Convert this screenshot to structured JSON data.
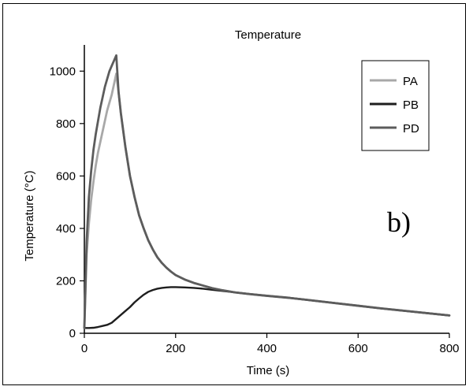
{
  "chart_data": {
    "type": "line",
    "title": "Temperature",
    "xlabel": "Time (s)",
    "ylabel": "Temperature (°C)",
    "xlim": [
      0,
      800
    ],
    "ylim": [
      0,
      1100
    ],
    "xticks": [
      0,
      200,
      400,
      600,
      800
    ],
    "yticks": [
      0,
      200,
      400,
      600,
      800,
      1000
    ],
    "grid": false,
    "legend_position": "top-right",
    "annotation": "b)",
    "series": [
      {
        "name": "PA",
        "color": "#a8a8a8",
        "x": [
          0,
          5,
          10,
          15,
          20,
          25,
          30,
          35,
          40,
          45,
          50,
          55,
          60,
          65,
          70,
          75,
          80,
          90,
          100,
          110,
          120,
          130,
          140,
          150,
          160,
          170,
          180,
          190,
          200,
          220,
          240,
          260,
          280,
          300,
          330,
          360,
          400,
          450,
          500,
          550,
          600,
          650,
          700,
          750,
          800
        ],
        "y": [
          20,
          300,
          420,
          510,
          580,
          640,
          690,
          730,
          770,
          810,
          850,
          880,
          910,
          950,
          990,
          920,
          840,
          710,
          600,
          520,
          450,
          400,
          355,
          320,
          290,
          268,
          250,
          235,
          222,
          205,
          192,
          182,
          172,
          165,
          156,
          150,
          143,
          135,
          125,
          115,
          105,
          95,
          86,
          77,
          68
        ]
      },
      {
        "name": "PB",
        "color": "#1e1e1e",
        "x": [
          0,
          10,
          20,
          30,
          40,
          50,
          60,
          70,
          80,
          90,
          100,
          110,
          120,
          130,
          140,
          150,
          160,
          170,
          180,
          190,
          200,
          220,
          240,
          260,
          280,
          300,
          330,
          360,
          400,
          450,
          500,
          550,
          600,
          650,
          700,
          750,
          800
        ],
        "y": [
          20,
          20,
          21,
          24,
          28,
          32,
          40,
          55,
          70,
          85,
          100,
          118,
          133,
          147,
          158,
          165,
          170,
          173,
          175,
          176,
          176,
          175,
          173,
          170,
          166,
          162,
          156,
          150,
          143,
          135,
          125,
          115,
          105,
          95,
          86,
          77,
          68
        ]
      },
      {
        "name": "PD",
        "color": "#5c5c5c",
        "x": [
          0,
          5,
          10,
          15,
          20,
          25,
          30,
          35,
          40,
          45,
          50,
          55,
          60,
          65,
          70,
          75,
          80,
          90,
          100,
          110,
          120,
          130,
          140,
          150,
          160,
          170,
          180,
          190,
          200,
          220,
          240,
          260,
          280,
          300,
          330,
          360,
          400,
          450,
          500,
          550,
          600,
          650,
          700,
          750,
          800
        ],
        "y": [
          20,
          350,
          520,
          620,
          700,
          760,
          810,
          860,
          900,
          940,
          970,
          1000,
          1020,
          1040,
          1060,
          920,
          840,
          710,
          600,
          520,
          450,
          400,
          355,
          320,
          290,
          268,
          250,
          235,
          222,
          205,
          192,
          182,
          172,
          165,
          156,
          150,
          143,
          135,
          125,
          115,
          105,
          95,
          86,
          77,
          68
        ]
      }
    ]
  }
}
